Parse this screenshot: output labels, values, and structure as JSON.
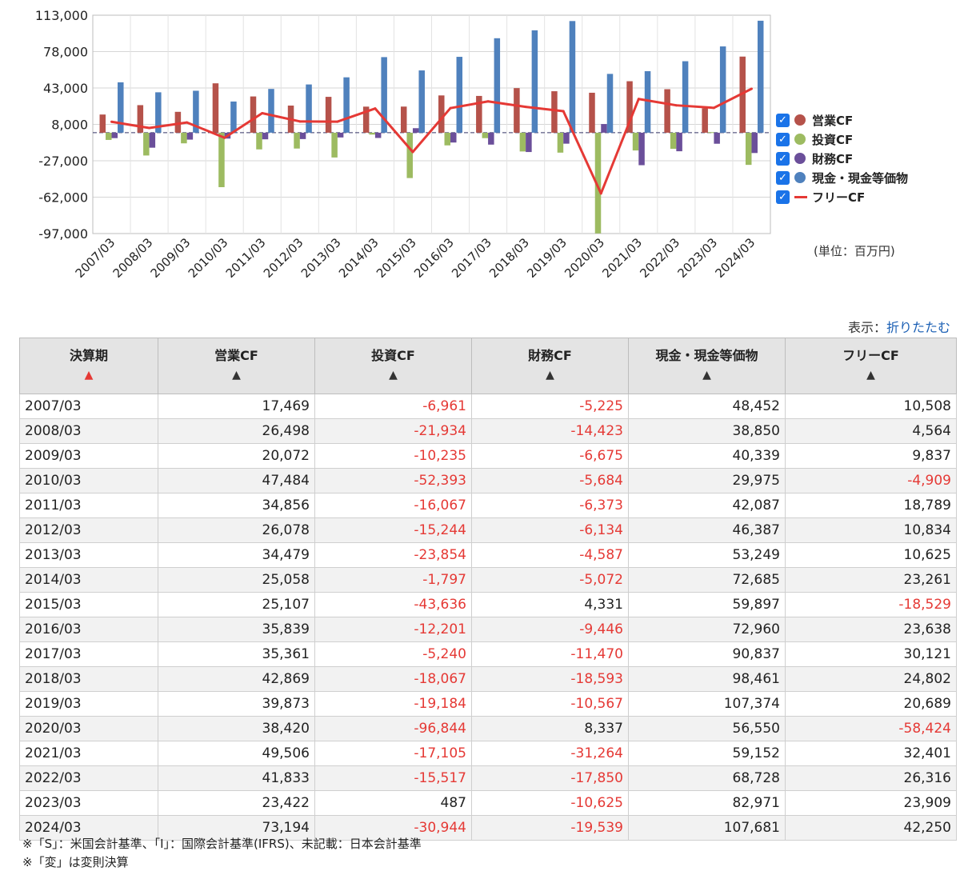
{
  "chart_data": {
    "type": "bar",
    "categories": [
      "2007/03",
      "2008/03",
      "2009/03",
      "2010/03",
      "2011/03",
      "2012/03",
      "2013/03",
      "2014/03",
      "2015/03",
      "2016/03",
      "2017/03",
      "2018/03",
      "2019/03",
      "2020/03",
      "2021/03",
      "2022/03",
      "2023/03",
      "2024/03"
    ],
    "series": [
      {
        "name": "営業CF",
        "kind": "bar",
        "color": "#b5524a",
        "values": [
          17469,
          26498,
          20072,
          47484,
          34856,
          26078,
          34479,
          25058,
          25107,
          35839,
          35361,
          42869,
          39873,
          38420,
          49506,
          41833,
          23422,
          73194
        ]
      },
      {
        "name": "投資CF",
        "kind": "bar",
        "color": "#9dbb61",
        "values": [
          -6961,
          -21934,
          -10235,
          -52393,
          -16067,
          -15244,
          -23854,
          -1797,
          -43636,
          -12201,
          -5240,
          -18067,
          -19184,
          -96844,
          -17105,
          -15517,
          487,
          -30944
        ]
      },
      {
        "name": "財務CF",
        "kind": "bar",
        "color": "#6b4f9a",
        "values": [
          -5225,
          -14423,
          -6675,
          -5684,
          -6373,
          -6134,
          -4587,
          -5072,
          4331,
          -9446,
          -11470,
          -18593,
          -10567,
          8337,
          -31264,
          -17850,
          -10625,
          -19539
        ]
      },
      {
        "name": "現金・現金等価物",
        "kind": "bar",
        "color": "#4f81bd",
        "values": [
          48452,
          38850,
          40339,
          29975,
          42087,
          46387,
          53249,
          72685,
          59897,
          72960,
          90837,
          98461,
          107374,
          56550,
          59152,
          68728,
          82971,
          107681
        ]
      },
      {
        "name": "フリーCF",
        "kind": "line",
        "color": "#e53935",
        "values": [
          10508,
          4564,
          9837,
          -4909,
          18789,
          10834,
          10625,
          23261,
          -18529,
          23638,
          30121,
          24802,
          20689,
          -58424,
          32401,
          26316,
          23909,
          42250
        ]
      }
    ],
    "yticks": [
      "113,000",
      "78,000",
      "43,000",
      "8,000",
      "-27,000",
      "-62,000",
      "-97,000"
    ],
    "ylim": [
      -97000,
      113000
    ],
    "unit": "(単位：百万円)"
  },
  "display_toggle": {
    "label": "表示：",
    "link": "折りたたむ"
  },
  "table": {
    "headers": [
      "決算期",
      "営業CF",
      "投資CF",
      "財務CF",
      "現金・現金等価物",
      "フリーCF"
    ],
    "sort_arrow": "▲",
    "rows": [
      [
        "2007/03",
        "17,469",
        "-6,961",
        "-5,225",
        "48,452",
        "10,508"
      ],
      [
        "2008/03",
        "26,498",
        "-21,934",
        "-14,423",
        "38,850",
        "4,564"
      ],
      [
        "2009/03",
        "20,072",
        "-10,235",
        "-6,675",
        "40,339",
        "9,837"
      ],
      [
        "2010/03",
        "47,484",
        "-52,393",
        "-5,684",
        "29,975",
        "-4,909"
      ],
      [
        "2011/03",
        "34,856",
        "-16,067",
        "-6,373",
        "42,087",
        "18,789"
      ],
      [
        "2012/03",
        "26,078",
        "-15,244",
        "-6,134",
        "46,387",
        "10,834"
      ],
      [
        "2013/03",
        "34,479",
        "-23,854",
        "-4,587",
        "53,249",
        "10,625"
      ],
      [
        "2014/03",
        "25,058",
        "-1,797",
        "-5,072",
        "72,685",
        "23,261"
      ],
      [
        "2015/03",
        "25,107",
        "-43,636",
        "4,331",
        "59,897",
        "-18,529"
      ],
      [
        "2016/03",
        "35,839",
        "-12,201",
        "-9,446",
        "72,960",
        "23,638"
      ],
      [
        "2017/03",
        "35,361",
        "-5,240",
        "-11,470",
        "90,837",
        "30,121"
      ],
      [
        "2018/03",
        "42,869",
        "-18,067",
        "-18,593",
        "98,461",
        "24,802"
      ],
      [
        "2019/03",
        "39,873",
        "-19,184",
        "-10,567",
        "107,374",
        "20,689"
      ],
      [
        "2020/03",
        "38,420",
        "-96,844",
        "8,337",
        "56,550",
        "-58,424"
      ],
      [
        "2021/03",
        "49,506",
        "-17,105",
        "-31,264",
        "59,152",
        "32,401"
      ],
      [
        "2022/03",
        "41,833",
        "-15,517",
        "-17,850",
        "68,728",
        "26,316"
      ],
      [
        "2023/03",
        "23,422",
        "487",
        "-10,625",
        "82,971",
        "23,909"
      ],
      [
        "2024/03",
        "73,194",
        "-30,944",
        "-19,539",
        "107,681",
        "42,250"
      ]
    ]
  },
  "notes": [
    "※「S」：米国会計基準、「I」：国際会計基準(IFRS)、未記載：日本会計基準",
    "※「変」は変則決算"
  ]
}
